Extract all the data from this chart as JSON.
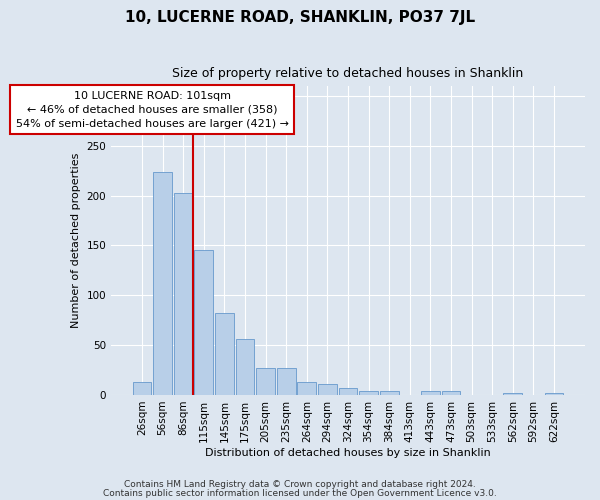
{
  "title": "10, LUCERNE ROAD, SHANKLIN, PO37 7JL",
  "subtitle": "Size of property relative to detached houses in Shanklin",
  "xlabel": "Distribution of detached houses by size in Shanklin",
  "ylabel": "Number of detached properties",
  "bar_labels": [
    "26sqm",
    "56sqm",
    "86sqm",
    "115sqm",
    "145sqm",
    "175sqm",
    "205sqm",
    "235sqm",
    "264sqm",
    "294sqm",
    "324sqm",
    "354sqm",
    "384sqm",
    "413sqm",
    "443sqm",
    "473sqm",
    "503sqm",
    "533sqm",
    "562sqm",
    "592sqm",
    "622sqm"
  ],
  "bar_heights": [
    13,
    224,
    203,
    145,
    82,
    56,
    27,
    27,
    13,
    11,
    7,
    4,
    4,
    0,
    4,
    4,
    0,
    0,
    2,
    0,
    2
  ],
  "bar_color": "#b8cfe8",
  "bar_edge_color": "#6699cc",
  "ylim": [
    0,
    310
  ],
  "annotation_line1": "10 LUCERNE ROAD: 101sqm",
  "annotation_line2": "← 46% of detached houses are smaller (358)",
  "annotation_line3": "54% of semi-detached houses are larger (421) →",
  "annotation_box_color": "#ffffff",
  "annotation_box_edge_color": "#cc0000",
  "red_line_x": 2.5,
  "footer1": "Contains HM Land Registry data © Crown copyright and database right 2024.",
  "footer2": "Contains public sector information licensed under the Open Government Licence v3.0.",
  "bg_color": "#dde6f0",
  "plot_bg_color": "#dde6f0",
  "grid_color": "#ffffff",
  "title_fontsize": 11,
  "subtitle_fontsize": 9,
  "axis_label_fontsize": 8,
  "tick_fontsize": 7.5,
  "footer_fontsize": 6.5,
  "annotation_fontsize": 8
}
